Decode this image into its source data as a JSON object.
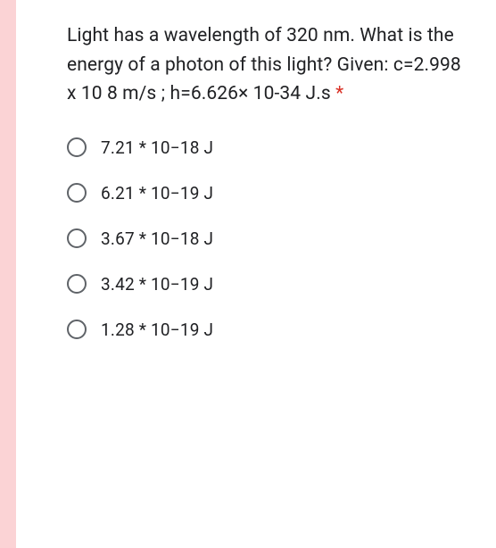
{
  "question": {
    "text": "Light has a wavelength of 320 nm. What is the energy of a photon of this light? Given: c=2.998 x 10 8 m/s ; h=6.626× 10-34 J.s",
    "required_marker": "*",
    "required_color": "#d93025"
  },
  "options": [
    {
      "label": "7.21 * 10−18 J"
    },
    {
      "label": "6.21 * 10−19 J"
    },
    {
      "label": "3.67 * 10−18 J"
    },
    {
      "label": "3.42 * 10−19 J"
    },
    {
      "label": "1.28 * 10−19 J"
    }
  ],
  "styling": {
    "accent_color": "#fbd3d5",
    "text_color": "#202124",
    "radio_border_color": "#5f6368",
    "background_color": "#ffffff",
    "question_fontsize": 21,
    "option_fontsize": 19
  }
}
